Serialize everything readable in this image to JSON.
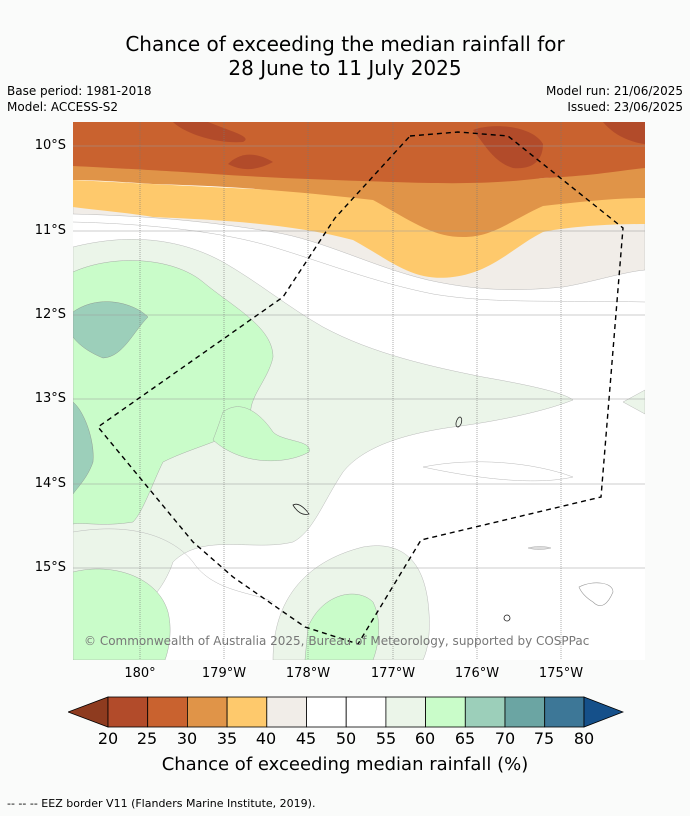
{
  "title_line1": "Chance of exceeding the median rainfall for",
  "title_line2": "28 June to 11 July 2025",
  "base_period": "Base period: 1981-2018",
  "model": "Model: ACCESS-S2",
  "model_run": "Model run: 21/06/2025",
  "issued": "Issued: 23/06/2025",
  "lat_labels": [
    "10°S",
    "11°S",
    "12°S",
    "13°S",
    "14°S",
    "15°S"
  ],
  "lon_labels": [
    "180°",
    "179°W",
    "178°W",
    "177°W",
    "176°W",
    "175°W"
  ],
  "copyright": "© Commonwealth of Australia 2025, Bureau of Meteorology, supported by COSPPac",
  "colorbar": {
    "labels": [
      "20",
      "25",
      "30",
      "35",
      "40",
      "45",
      "50",
      "55",
      "60",
      "65",
      "70",
      "75",
      "80"
    ],
    "title": "Chance of exceeding median rainfall (%)",
    "colors": [
      "#8e3b1f",
      "#b24b2a",
      "#c9622f",
      "#e09448",
      "#fec96c",
      "#f1ede8",
      "#ffffff",
      "#ffffff",
      "#ebf5e9",
      "#c9fcc9",
      "#9ccfba",
      "#6ba5a3",
      "#3d7797",
      "#15508a"
    ]
  },
  "footer": "--  --  -- EEZ border V11 (Flanders Marine Institute, 2019)."
}
